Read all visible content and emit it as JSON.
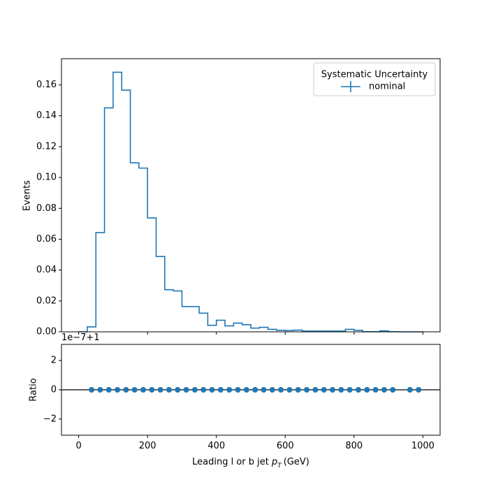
{
  "chart_data": [
    {
      "type": "step",
      "panel": "main",
      "ylabel": "Events",
      "xlim": [
        -50,
        1050
      ],
      "ylim": [
        0,
        0.177
      ],
      "yticks": [
        "0.00",
        "0.02",
        "0.04",
        "0.06",
        "0.08",
        "0.10",
        "0.12",
        "0.14",
        "0.16"
      ],
      "legend": {
        "title": "Systematic Uncertainty",
        "entries": [
          "nominal"
        ],
        "placement": "top-right"
      },
      "series": [
        {
          "name": "nominal",
          "color": "#1f77b4",
          "bin_edges": [
            0,
            25,
            50,
            75,
            100,
            125,
            150,
            175,
            200,
            225,
            250,
            275,
            300,
            325,
            350,
            375,
            400,
            425,
            450,
            475,
            500,
            525,
            550,
            575,
            600,
            625,
            650,
            675,
            700,
            725,
            750,
            775,
            800,
            825,
            850,
            875,
            900,
            925,
            950,
            975,
            1000
          ],
          "values": [
            0.0,
            0.0032,
            0.0643,
            0.1451,
            0.1682,
            0.1566,
            0.1095,
            0.1061,
            0.0738,
            0.0488,
            0.0273,
            0.0265,
            0.0164,
            0.0164,
            0.0121,
            0.0042,
            0.0075,
            0.0038,
            0.0057,
            0.0046,
            0.0024,
            0.0029,
            0.0016,
            0.001,
            0.0008,
            0.0011,
            0.0005,
            0.0005,
            0.0005,
            0.0005,
            0.0005,
            0.0016,
            0.001,
            0.0001,
            0.0001,
            0.0006,
            0.0001,
            0.0,
            0.0,
            0.0
          ]
        }
      ]
    },
    {
      "type": "scatter",
      "panel": "ratio",
      "ylabel": "Ratio",
      "xlabel": "Leading l or b jet",
      "xlabel_var": "p",
      "xlabel_sub": "T",
      "xlabel_unit": "(GeV)",
      "offset_text": "1e−7+1",
      "xlim": [
        -50,
        1050
      ],
      "ylim": [
        -3.1,
        3.1
      ],
      "xticks": [
        "0",
        "200",
        "400",
        "600",
        "800",
        "1000"
      ],
      "yticks": [
        "−2",
        "0",
        "2"
      ],
      "reference_line": 0,
      "series": [
        {
          "color": "#1f77b4",
          "x": [
            37.5,
            62.5,
            87.5,
            112.5,
            137.5,
            162.5,
            187.5,
            212.5,
            237.5,
            262.5,
            287.5,
            312.5,
            337.5,
            362.5,
            387.5,
            412.5,
            437.5,
            462.5,
            487.5,
            512.5,
            537.5,
            562.5,
            587.5,
            612.5,
            637.5,
            662.5,
            687.5,
            712.5,
            737.5,
            762.5,
            787.5,
            812.5,
            837.5,
            862.5,
            887.5,
            912.5,
            962.5,
            987.5
          ],
          "y": [
            0,
            0,
            0,
            0,
            0,
            0,
            0,
            0,
            0,
            0,
            0,
            0,
            0,
            0,
            0,
            0,
            0,
            0,
            0,
            0,
            0,
            0,
            0,
            0,
            0,
            0,
            0,
            0,
            0,
            0,
            0,
            0,
            0,
            0,
            0,
            0,
            0,
            0
          ]
        }
      ]
    }
  ]
}
